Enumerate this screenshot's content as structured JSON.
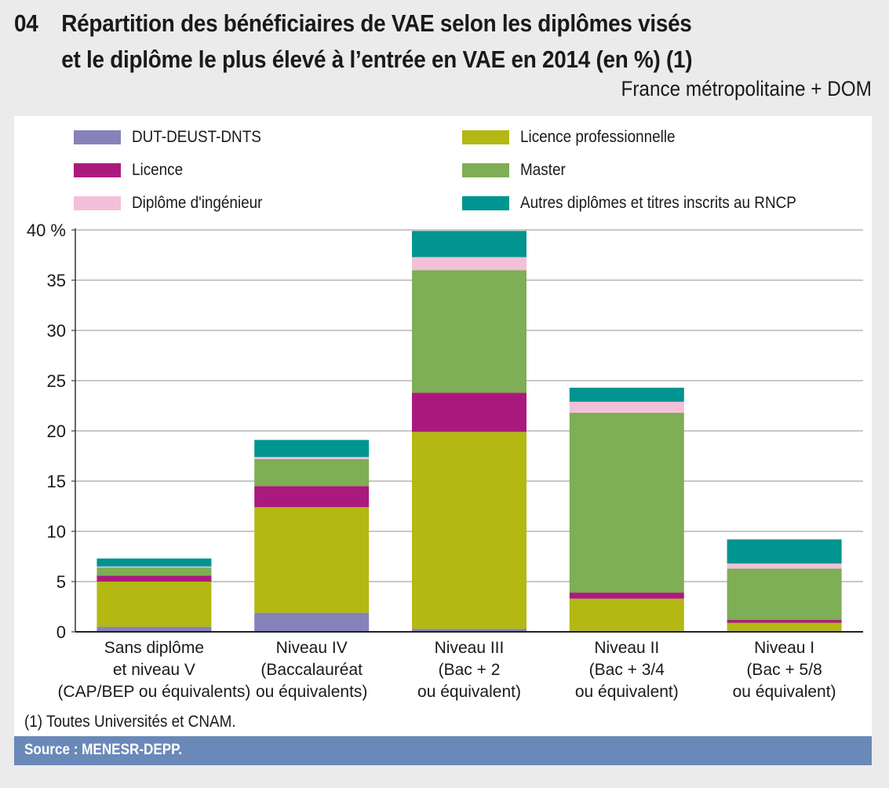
{
  "header": {
    "number": "04",
    "title_line1": "Répartition des bénéficiaires de VAE selon les diplômes visés",
    "title_line2": "et le diplôme le plus élevé à l’entrée en VAE en 2014 (en %) (1)",
    "subtitle": "France métropolitaine + DOM"
  },
  "footnote": "(1) Toutes Universités et CNAM.",
  "source": "Source : MENESR-DEPP.",
  "chart_data": {
    "type": "bar",
    "stacked": true,
    "title": "Répartition des bénéficiaires de VAE selon les diplômes visés et le diplôme le plus élevé à l’entrée en VAE en 2014 (en %) (1)",
    "xlabel": "",
    "ylabel": "",
    "ylim": [
      0,
      40
    ],
    "yticks": [
      0,
      5,
      10,
      15,
      20,
      25,
      30,
      35,
      40
    ],
    "ytick_labels": [
      "0",
      "5",
      "10",
      "15",
      "20",
      "25",
      "30",
      "35",
      "40 %"
    ],
    "grid": true,
    "legend_position": "top",
    "categories": [
      [
        "Sans diplôme",
        "et niveau V",
        "(CAP/BEP ou équivalents)"
      ],
      [
        "Niveau IV",
        "(Baccalauréat",
        "ou équivalents)"
      ],
      [
        "Niveau III",
        "(Bac + 2",
        "ou équivalent)"
      ],
      [
        "Niveau II",
        "(Bac + 3/4",
        "ou équivalent)"
      ],
      [
        "Niveau I",
        "(Bac + 5/8",
        "ou équivalent)"
      ]
    ],
    "series": [
      {
        "name": "DUT-DEUST-DNTS",
        "color": "#8782ba",
        "values": [
          0.5,
          1.9,
          0.3,
          0.1,
          0.1
        ]
      },
      {
        "name": "Licence professionnelle",
        "color": "#b3b812",
        "values": [
          4.5,
          10.5,
          19.6,
          3.2,
          0.8
        ]
      },
      {
        "name": "Licence",
        "color": "#aa1a7e",
        "values": [
          0.6,
          2.1,
          3.9,
          0.6,
          0.3
        ]
      },
      {
        "name": "Master",
        "color": "#7eae55",
        "values": [
          0.8,
          2.7,
          12.2,
          17.9,
          5.1
        ]
      },
      {
        "name": "Diplôme d'ingénieur",
        "color": "#f2c0d8",
        "values": [
          0.1,
          0.2,
          1.3,
          1.1,
          0.5
        ]
      },
      {
        "name": "Autres diplômes et titres inscrits au RNCP",
        "color": "#009490",
        "values": [
          0.8,
          1.7,
          2.6,
          1.4,
          2.4
        ]
      }
    ],
    "legend_order": [
      0,
      1,
      2,
      3,
      4,
      5
    ]
  }
}
